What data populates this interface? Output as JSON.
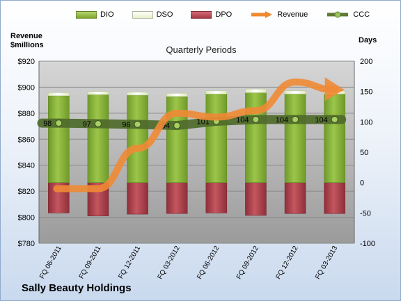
{
  "legend": {
    "dio": "DIO",
    "dso": "DSO",
    "dpo": "DPO",
    "revenue": "Revenue",
    "ccc": "CCC"
  },
  "left_axis_head": "Revenue\n$millions",
  "right_axis_head": "Days",
  "period_title": "Quarterly Periods",
  "company": "Sally Beauty Holdings",
  "colors": {
    "dio": "#8db53c",
    "dso": "#eef5d8",
    "dpo": "#b54a55",
    "revenue": "#f0892f",
    "ccc": "#5e7a34"
  },
  "chart_data": {
    "type": "bar",
    "title": "Quarterly Periods",
    "categories": [
      "FQ 06-2011",
      "FQ 09-2011",
      "FQ 12-2011",
      "FQ 03-2012",
      "FQ 06-2012",
      "FQ 09-2012",
      "FQ 12-2012",
      "FQ 03-2013"
    ],
    "y_left": {
      "label": "Revenue $millions",
      "min": 780,
      "max": 920,
      "ticks": [
        "$780",
        "$800",
        "$820",
        "$840",
        "$860",
        "$880",
        "$900",
        "$920"
      ]
    },
    "y_right": {
      "label": "Days",
      "min": -100,
      "max": 200,
      "ticks": [
        "-100",
        "-50",
        "0",
        "50",
        "100",
        "150",
        "200"
      ]
    },
    "grid": true,
    "legend_position": "top",
    "series": [
      {
        "name": "DIO",
        "axis": "right",
        "kind": "stacked-bar",
        "values": [
          143,
          145,
          144,
          142,
          146,
          148,
          146,
          146
        ]
      },
      {
        "name": "DSO",
        "axis": "right",
        "kind": "stacked-bar",
        "values": [
          5,
          5,
          5,
          5,
          5,
          6,
          5,
          5
        ]
      },
      {
        "name": "DPO",
        "axis": "right",
        "kind": "stacked-bar-negative",
        "values": [
          -50,
          -55,
          -52,
          -51,
          -50,
          -54,
          -51,
          -51
        ]
      },
      {
        "name": "Revenue",
        "axis": "left",
        "kind": "line",
        "values": [
          822,
          822,
          853,
          880,
          877,
          882,
          904,
          898
        ]
      },
      {
        "name": "CCC",
        "axis": "right",
        "kind": "line",
        "values": [
          98,
          97,
          96,
          94,
          101,
          104,
          104,
          104
        ]
      }
    ],
    "ccc_labels": [
      "98",
      "97",
      "96",
      "94",
      "101",
      "104",
      "104",
      "104"
    ]
  }
}
